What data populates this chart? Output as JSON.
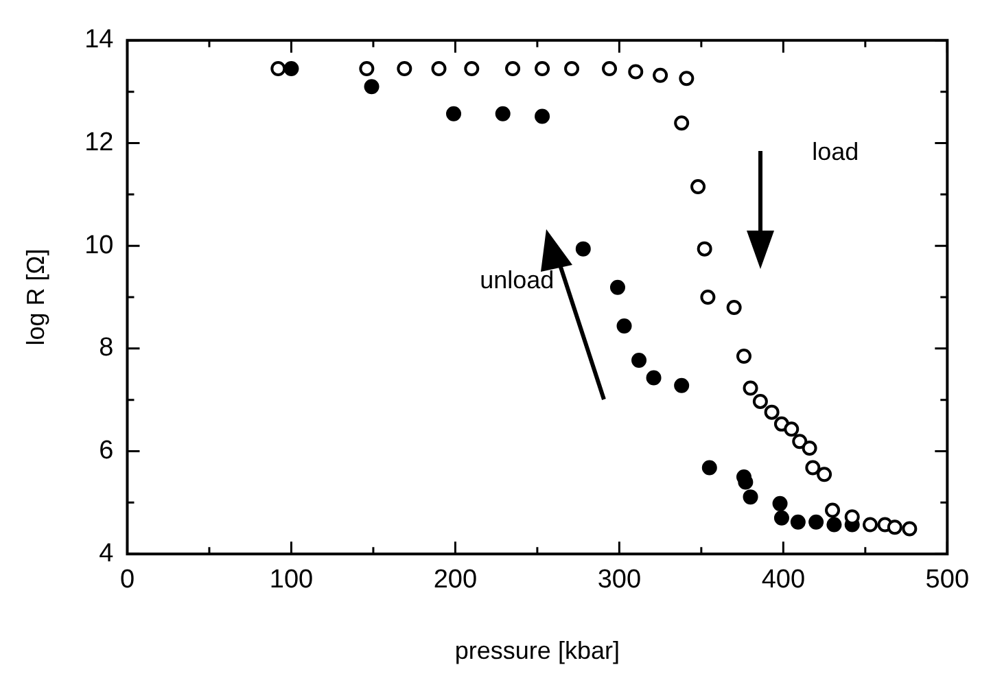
{
  "chart_data": {
    "type": "scatter",
    "xlabel": "pressure [kbar]",
    "ylabel": "log R [Ω]",
    "xlim": [
      0,
      500
    ],
    "xticks": [
      0,
      100,
      200,
      300,
      400,
      500
    ],
    "ylim": [
      4,
      14
    ],
    "yticks": [
      4,
      6,
      8,
      10,
      12,
      14
    ],
    "grid": false,
    "legend": false,
    "marker": "circle",
    "series": [
      {
        "color": "#ffffff",
        "x": [
          92,
          146,
          169,
          190,
          210,
          235,
          253,
          271,
          294,
          310,
          325,
          341,
          338,
          348,
          352,
          354,
          370,
          376,
          380,
          386,
          393,
          399,
          405,
          410,
          416,
          418,
          425,
          430,
          442,
          453,
          462,
          468,
          477
        ],
        "values": [
          13.45,
          13.45,
          13.45,
          13.45,
          13.45,
          13.45,
          13.45,
          13.45,
          13.45,
          13.39,
          13.32,
          13.26,
          12.39,
          11.15,
          9.94,
          9.0,
          8.8,
          7.85,
          7.23,
          6.97,
          6.76,
          6.53,
          6.43,
          6.19,
          6.06,
          5.68,
          5.55,
          4.85,
          4.72,
          4.57,
          4.57,
          4.52,
          4.49
        ]
      },
      {
        "color": "#000000",
        "x": [
          100,
          149,
          199,
          229,
          253,
          278,
          299,
          303,
          312,
          321,
          338,
          355,
          376,
          377,
          380,
          398,
          399,
          409,
          420,
          431,
          442
        ],
        "values": [
          13.45,
          13.1,
          12.57,
          12.57,
          12.52,
          9.94,
          9.19,
          8.44,
          7.77,
          7.43,
          7.28,
          5.68,
          5.5,
          5.4,
          5.11,
          4.98,
          4.7,
          4.62,
          4.62,
          4.57,
          4.57
        ]
      }
    ],
    "annotations": [
      "load",
      "unload"
    ]
  }
}
